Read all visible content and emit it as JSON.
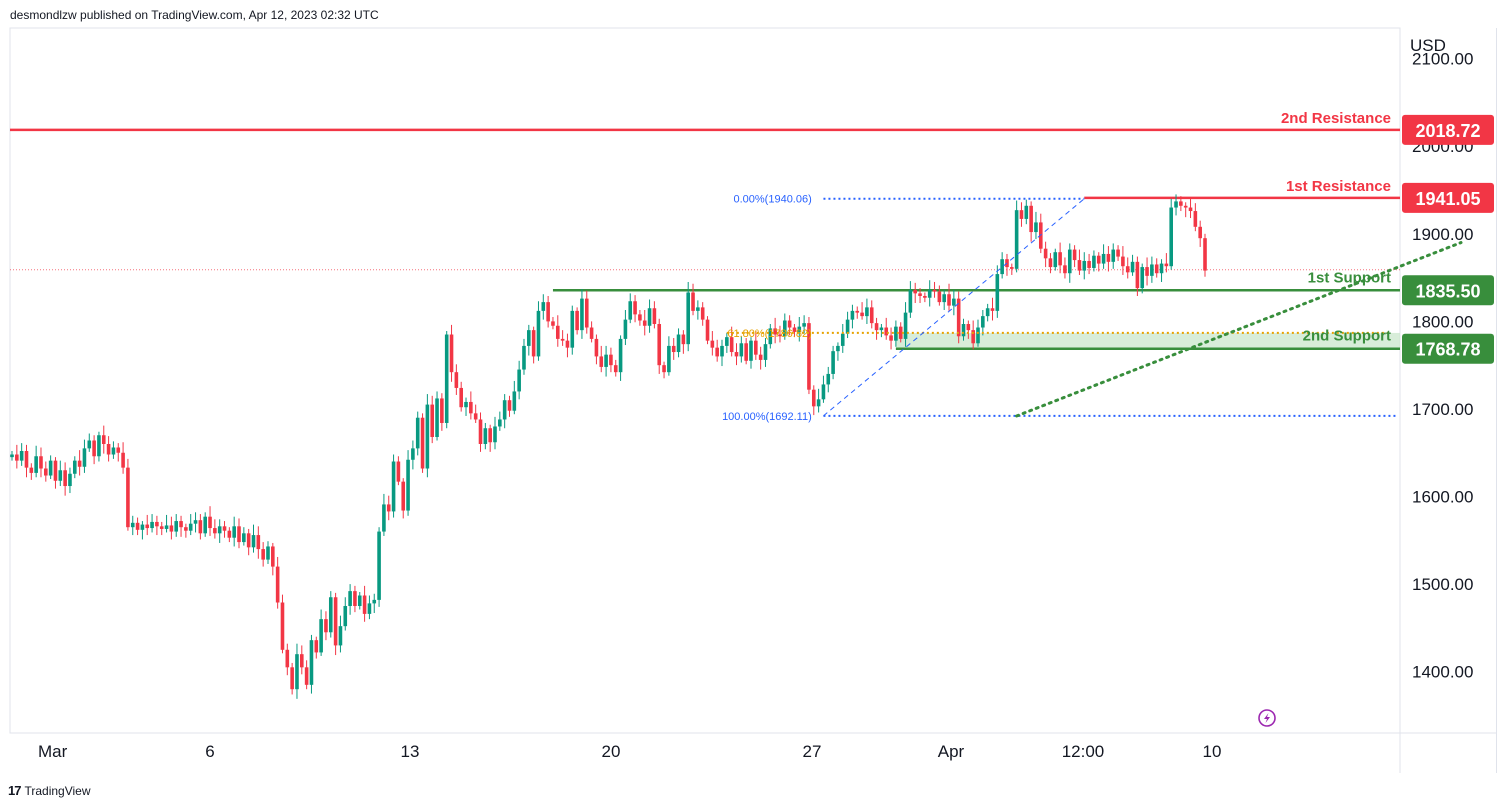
{
  "header": {
    "published_text": "desmondlzw published on TradingView.com, Apr 12, 2023 02:32 UTC"
  },
  "footer": {
    "brand": "TradingView",
    "logo_text": "17"
  },
  "chart_data": {
    "type": "candlestick",
    "currency_label": "USD",
    "ylim": [
      1330,
      2135
    ],
    "y_ticks": [
      {
        "value": 2100,
        "label": "2100.00"
      },
      {
        "value": 2000,
        "label": "2000.00"
      },
      {
        "value": 1900,
        "label": "1900.00"
      },
      {
        "value": 1800,
        "label": "1800.00"
      },
      {
        "value": 1700,
        "label": "1700.00"
      },
      {
        "value": 1600,
        "label": "1600.00"
      },
      {
        "value": 1500,
        "label": "1500.00"
      },
      {
        "value": 1400,
        "label": "1400.00"
      }
    ],
    "x_ticks": [
      "Mar",
      "6",
      "13",
      "20",
      "27",
      "Apr",
      "12:00",
      "10"
    ],
    "levels": [
      {
        "name": "2nd Resistance",
        "value": 2018.72,
        "value_label": "2018.72",
        "color": "#f23645"
      },
      {
        "name": "1st Resistance",
        "value": 1941.05,
        "value_label": "1941.05",
        "color": "#f23645"
      },
      {
        "name": "1st Support",
        "value": 1835.5,
        "value_label": "1835.50",
        "color": "#388e3c"
      },
      {
        "name": "2nd Support",
        "value": 1768.78,
        "value_label": "1768.78",
        "color": "#388e3c"
      }
    ],
    "fib_labels": [
      {
        "text": "0.00%(1940.06)",
        "value": 1940.06,
        "color": "#2962ff"
      },
      {
        "text": "61.80%(1786.82)",
        "value": 1786.82,
        "color": "#e6a100"
      },
      {
        "text": "100.00%(1692.11)",
        "value": 1692.11,
        "color": "#2962ff"
      }
    ],
    "current_price": 1859,
    "trendline": {
      "from": {
        "bar": 208,
        "value": 1692
      },
      "to": {
        "bar": 300,
        "value": 1890
      }
    },
    "seed_closes": [
      1648,
      1641,
      1652,
      1633,
      1627,
      1646,
      1632,
      1624,
      1641,
      1618,
      1630,
      1612,
      1626,
      1641,
      1634,
      1655,
      1664,
      1646,
      1670,
      1660,
      1648,
      1656,
      1650,
      1633,
      1565,
      1570,
      1562,
      1568,
      1564,
      1571,
      1566,
      1563,
      1567,
      1560,
      1572,
      1565,
      1561,
      1569,
      1573,
      1558,
      1577,
      1564,
      1558,
      1566,
      1561,
      1553,
      1566,
      1548,
      1558,
      1542,
      1556,
      1540,
      1528,
      1543,
      1520,
      1479,
      1425,
      1405,
      1380,
      1420,
      1405,
      1385,
      1436,
      1422,
      1460,
      1445,
      1485,
      1430,
      1452,
      1475,
      1492,
      1475,
      1487,
      1466,
      1478,
      1482,
      1560,
      1591,
      1583,
      1640,
      1617,
      1584,
      1642,
      1655,
      1690,
      1632,
      1705,
      1668,
      1712,
      1684,
      1785,
      1742,
      1724,
      1702,
      1708,
      1695,
      1688,
      1660,
      1678,
      1662,
      1680,
      1688,
      1710,
      1698,
      1720,
      1745,
      1772,
      1790,
      1760,
      1812,
      1822,
      1800,
      1795,
      1780,
      1778,
      1770,
      1812,
      1790,
      1826,
      1793,
      1780,
      1760,
      1748,
      1762,
      1750,
      1742,
      1780,
      1802,
      1823,
      1808,
      1801,
      1795,
      1815,
      1797,
      1750,
      1742,
      1772,
      1765,
      1785,
      1774,
      1833,
      1812,
      1816,
      1802,
      1778,
      1770,
      1760,
      1772,
      1782,
      1765,
      1760,
      1775,
      1755,
      1778,
      1762,
      1756,
      1774,
      1792,
      1785,
      1783,
      1801,
      1793,
      1788,
      1794,
      1798,
      1722,
      1703,
      1711,
      1728,
      1740,
      1766,
      1772,
      1786,
      1802,
      1812,
      1810,
      1806,
      1816,
      1798,
      1790,
      1793,
      1784,
      1778,
      1794,
      1780,
      1810,
      1836,
      1832,
      1829,
      1827,
      1836,
      1834,
      1822,
      1831,
      1818,
      1826,
      1783,
      1797,
      1790,
      1775,
      1793,
      1806,
      1815,
      1812,
      1854,
      1871,
      1862,
      1860,
      1927,
      1917,
      1932,
      1902,
      1913,
      1883,
      1872,
      1862,
      1879,
      1864,
      1855,
      1882,
      1870,
      1858,
      1869,
      1861,
      1875,
      1866,
      1877,
      1868,
      1882,
      1874,
      1863,
      1856,
      1868,
      1838,
      1862,
      1852,
      1865,
      1855,
      1866,
      1863,
      1930,
      1937,
      1932,
      1930,
      1926,
      1908,
      1895,
      1858
    ]
  }
}
